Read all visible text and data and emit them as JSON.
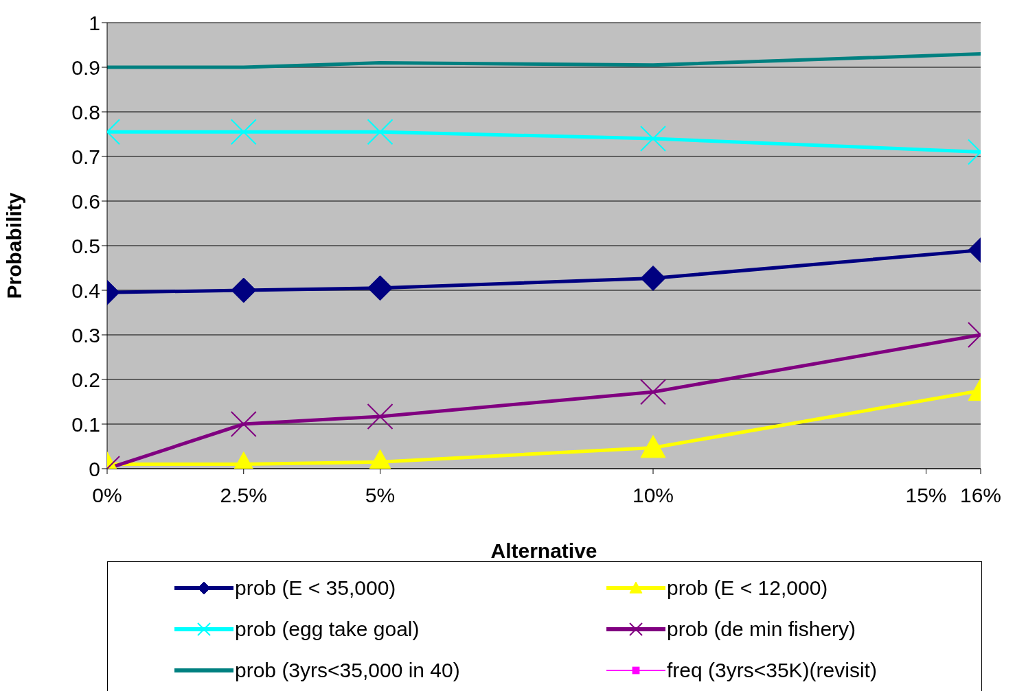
{
  "chart_data": {
    "type": "line",
    "xlabel": "Alternative",
    "ylabel": "Probability",
    "x": [
      0,
      2.5,
      5,
      10,
      16
    ],
    "xlim": [
      0,
      16
    ],
    "xticks": [
      {
        "value": 0,
        "label": "0%"
      },
      {
        "value": 2.5,
        "label": "2.5%"
      },
      {
        "value": 5,
        "label": "5%"
      },
      {
        "value": 10,
        "label": "10%"
      },
      {
        "value": 15,
        "label": "15%"
      },
      {
        "value": 16,
        "label": "16%"
      }
    ],
    "ylim": [
      0,
      1
    ],
    "yticks": [
      0,
      0.1,
      0.2,
      0.3,
      0.4,
      0.5,
      0.6,
      0.7,
      0.8,
      0.9,
      1
    ],
    "grid": "y",
    "legend": "bottom",
    "line_style": "solid",
    "series": [
      {
        "name": "prob (E < 35,000)",
        "color": "#000080",
        "marker": "diamond",
        "values": [
          0.395,
          0.4,
          0.405,
          0.427,
          0.49
        ]
      },
      {
        "name": "prob (E < 12,000)",
        "color": "#ffff00",
        "marker": "triangle",
        "values": [
          0.01,
          0.01,
          0.015,
          0.047,
          0.175
        ]
      },
      {
        "name": "prob (egg take goal)",
        "color": "#00ffff",
        "marker": "cross",
        "values": [
          0.755,
          0.755,
          0.755,
          0.74,
          0.71
        ]
      },
      {
        "name": "prob (de min fishery)",
        "color": "#800080",
        "marker": "cross",
        "values": [
          0,
          0.1,
          0.117,
          0.172,
          0.3
        ]
      },
      {
        "name": "prob (3yrs<35,000 in 40)",
        "color": "#008080",
        "marker": "none",
        "values": [
          0.9,
          0.9,
          0.91,
          0.905,
          0.93
        ]
      },
      {
        "name": "freq (3yrs<35K)(revisit)",
        "color": "#ff00ff",
        "marker": "square",
        "values": [
          null,
          null,
          null,
          null,
          null
        ]
      }
    ]
  }
}
